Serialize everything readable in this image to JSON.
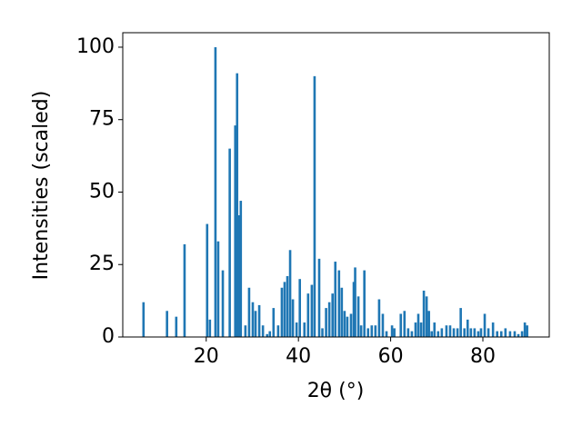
{
  "chart_data": {
    "type": "bar",
    "xlabel": "2θ (°)",
    "ylabel": "Intensities (scaled)",
    "color": "#1f77b4",
    "x": [
      6.4,
      11.5,
      13.5,
      15.3,
      20.2,
      20.8,
      22.0,
      22.6,
      23.6,
      25.1,
      26.3,
      26.7,
      27.1,
      27.5,
      28.5,
      29.3,
      30.1,
      30.7,
      31.5,
      32.3,
      33.2,
      33.8,
      34.6,
      35.6,
      36.4,
      37.0,
      37.6,
      38.2,
      38.8,
      39.6,
      40.3,
      41.3,
      42.1,
      42.9,
      43.5,
      44.5,
      45.2,
      46.0,
      46.7,
      47.4,
      48.0,
      48.8,
      49.4,
      50.0,
      50.6,
      51.4,
      52.0,
      52.3,
      53.0,
      53.6,
      54.3,
      55.1,
      55.9,
      56.7,
      57.5,
      58.3,
      59.1,
      60.3,
      60.8,
      62.2,
      63.0,
      63.8,
      64.6,
      65.4,
      66.0,
      66.6,
      67.2,
      67.8,
      68.3,
      68.9,
      69.5,
      70.3,
      71.1,
      72.1,
      72.9,
      73.7,
      74.5,
      75.2,
      76.0,
      76.7,
      77.4,
      78.2,
      79.0,
      79.6,
      80.4,
      81.2,
      82.2,
      83.1,
      84.0,
      84.9,
      85.9,
      86.9,
      87.7,
      88.5,
      89.1,
      89.6
    ],
    "values": [
      12,
      9,
      7,
      32,
      39,
      6,
      100,
      33,
      23,
      65,
      73,
      91,
      42,
      47,
      4,
      17,
      12,
      9,
      11,
      4,
      1,
      2,
      10,
      4,
      17,
      19,
      21,
      30,
      13,
      5,
      20,
      5,
      15,
      18,
      90,
      27,
      3,
      10,
      12,
      15,
      26,
      23,
      17,
      9,
      7,
      8,
      19,
      24,
      14,
      4,
      23,
      3,
      4,
      4,
      13,
      8,
      2,
      4,
      3,
      8,
      9,
      3,
      2,
      5,
      8,
      5,
      16,
      14,
      9,
      2,
      5,
      2,
      3,
      4,
      4,
      3,
      3,
      10,
      3,
      6,
      3,
      3,
      2,
      3,
      8,
      3,
      5,
      2,
      2,
      3,
      2,
      2,
      1,
      2,
      5,
      4
    ],
    "xlim": [
      1.9,
      94.4
    ],
    "xticks": [
      20,
      40,
      60,
      80
    ],
    "ylim": [
      0,
      105
    ],
    "yticks": [
      0,
      25,
      50,
      75,
      100
    ]
  }
}
